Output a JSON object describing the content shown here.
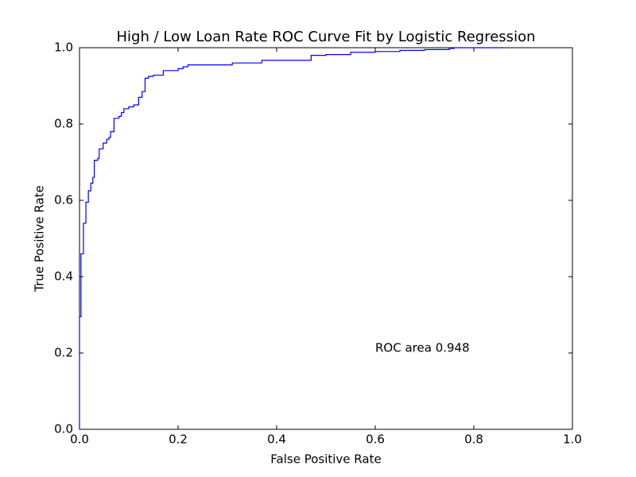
{
  "chart_data": {
    "type": "line",
    "drawstyle": "steps-post",
    "title": "High / Low Loan Rate ROC Curve Fit by Logistic Regression",
    "x_label": "False Positive Rate",
    "y_label": "True Positive Rate",
    "annotation": "ROC area 0.948",
    "xlim": [
      0,
      1
    ],
    "ylim": [
      0,
      1
    ],
    "xticks": [
      {
        "value": 0,
        "label": "0.0"
      },
      0.2,
      0.4,
      0.6,
      0.8,
      {
        "value": 1,
        "label": "1.0"
      }
    ],
    "yticks": [
      {
        "value": 0,
        "label": "0.0"
      },
      0.2,
      0.4,
      0.6,
      0.8,
      {
        "value": 1,
        "label": "1.0"
      }
    ],
    "series": [
      {
        "color": "#0000ff",
        "x": [
          0,
          0,
          0.003,
          0.008,
          0.013,
          0.018,
          0.023,
          0.027,
          0.03,
          0.037,
          0.04,
          0.048,
          0.055,
          0.06,
          0.063,
          0.07,
          0.08,
          0.085,
          0.09,
          0.1,
          0.11,
          0.12,
          0.127,
          0.133,
          0.14,
          0.15,
          0.17,
          0.2,
          0.21,
          0.22,
          0.31,
          0.37,
          0.47,
          0.5,
          0.55,
          0.6,
          0.65,
          0.7,
          0.75,
          0.76,
          0.86
        ],
        "y": [
          0,
          0.295,
          0.46,
          0.54,
          0.595,
          0.625,
          0.645,
          0.66,
          0.705,
          0.71,
          0.735,
          0.75,
          0.76,
          0.765,
          0.78,
          0.815,
          0.82,
          0.83,
          0.84,
          0.845,
          0.85,
          0.87,
          0.885,
          0.92,
          0.925,
          0.928,
          0.94,
          0.945,
          0.95,
          0.955,
          0.96,
          0.967,
          0.98,
          0.982,
          0.988,
          0.99,
          0.993,
          0.995,
          0.998,
          1.0,
          1.0
        ]
      }
    ]
  }
}
